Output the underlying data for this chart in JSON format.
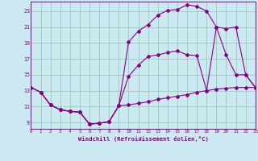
{
  "xlabel": "Windchill (Refroidissement éolien,°C)",
  "bg_color": "#cce8f0",
  "line_color": "#880088",
  "grid_color": "#99ccbb",
  "x_ticks": [
    0,
    1,
    2,
    3,
    4,
    5,
    6,
    7,
    8,
    9,
    10,
    11,
    12,
    13,
    14,
    15,
    16,
    17,
    18,
    19,
    20,
    21,
    22,
    23
  ],
  "y_ticks": [
    9,
    11,
    13,
    15,
    17,
    19,
    21,
    23
  ],
  "xlim": [
    0,
    23
  ],
  "ylim": [
    8.2,
    24.2
  ],
  "line1_x": [
    0,
    1,
    2,
    3,
    4,
    5,
    6,
    7,
    8,
    9,
    10,
    11,
    12,
    13,
    14,
    15,
    16,
    17,
    18,
    19,
    20,
    21,
    22,
    23
  ],
  "line1_y": [
    13.4,
    12.8,
    11.2,
    10.6,
    10.4,
    10.3,
    8.8,
    8.9,
    9.1,
    11.1,
    11.2,
    11.4,
    11.6,
    11.9,
    12.1,
    12.3,
    12.5,
    12.8,
    13.0,
    13.2,
    13.3,
    13.4,
    13.4,
    13.4
  ],
  "line2_x": [
    0,
    1,
    2,
    3,
    4,
    5,
    6,
    7,
    8,
    9,
    10,
    11,
    12,
    13,
    14,
    15,
    16,
    17,
    18,
    19,
    20,
    21,
    22,
    23
  ],
  "line2_y": [
    13.4,
    12.8,
    11.2,
    10.6,
    10.4,
    10.3,
    8.8,
    8.9,
    9.1,
    11.1,
    14.8,
    16.2,
    17.3,
    17.5,
    17.8,
    18.0,
    17.5,
    17.4,
    13.0,
    21.0,
    20.8,
    21.0,
    15.0,
    13.4
  ],
  "line3_x": [
    0,
    1,
    2,
    3,
    4,
    5,
    6,
    7,
    8,
    9,
    10,
    11,
    12,
    13,
    14,
    15,
    16,
    17,
    18,
    19,
    20,
    21,
    22,
    23
  ],
  "line3_y": [
    13.4,
    12.8,
    11.2,
    10.6,
    10.4,
    10.3,
    8.8,
    8.9,
    9.1,
    11.1,
    19.1,
    20.5,
    21.3,
    22.5,
    23.1,
    23.2,
    23.8,
    23.6,
    23.0,
    21.0,
    17.5,
    15.0,
    15.0,
    13.4
  ]
}
